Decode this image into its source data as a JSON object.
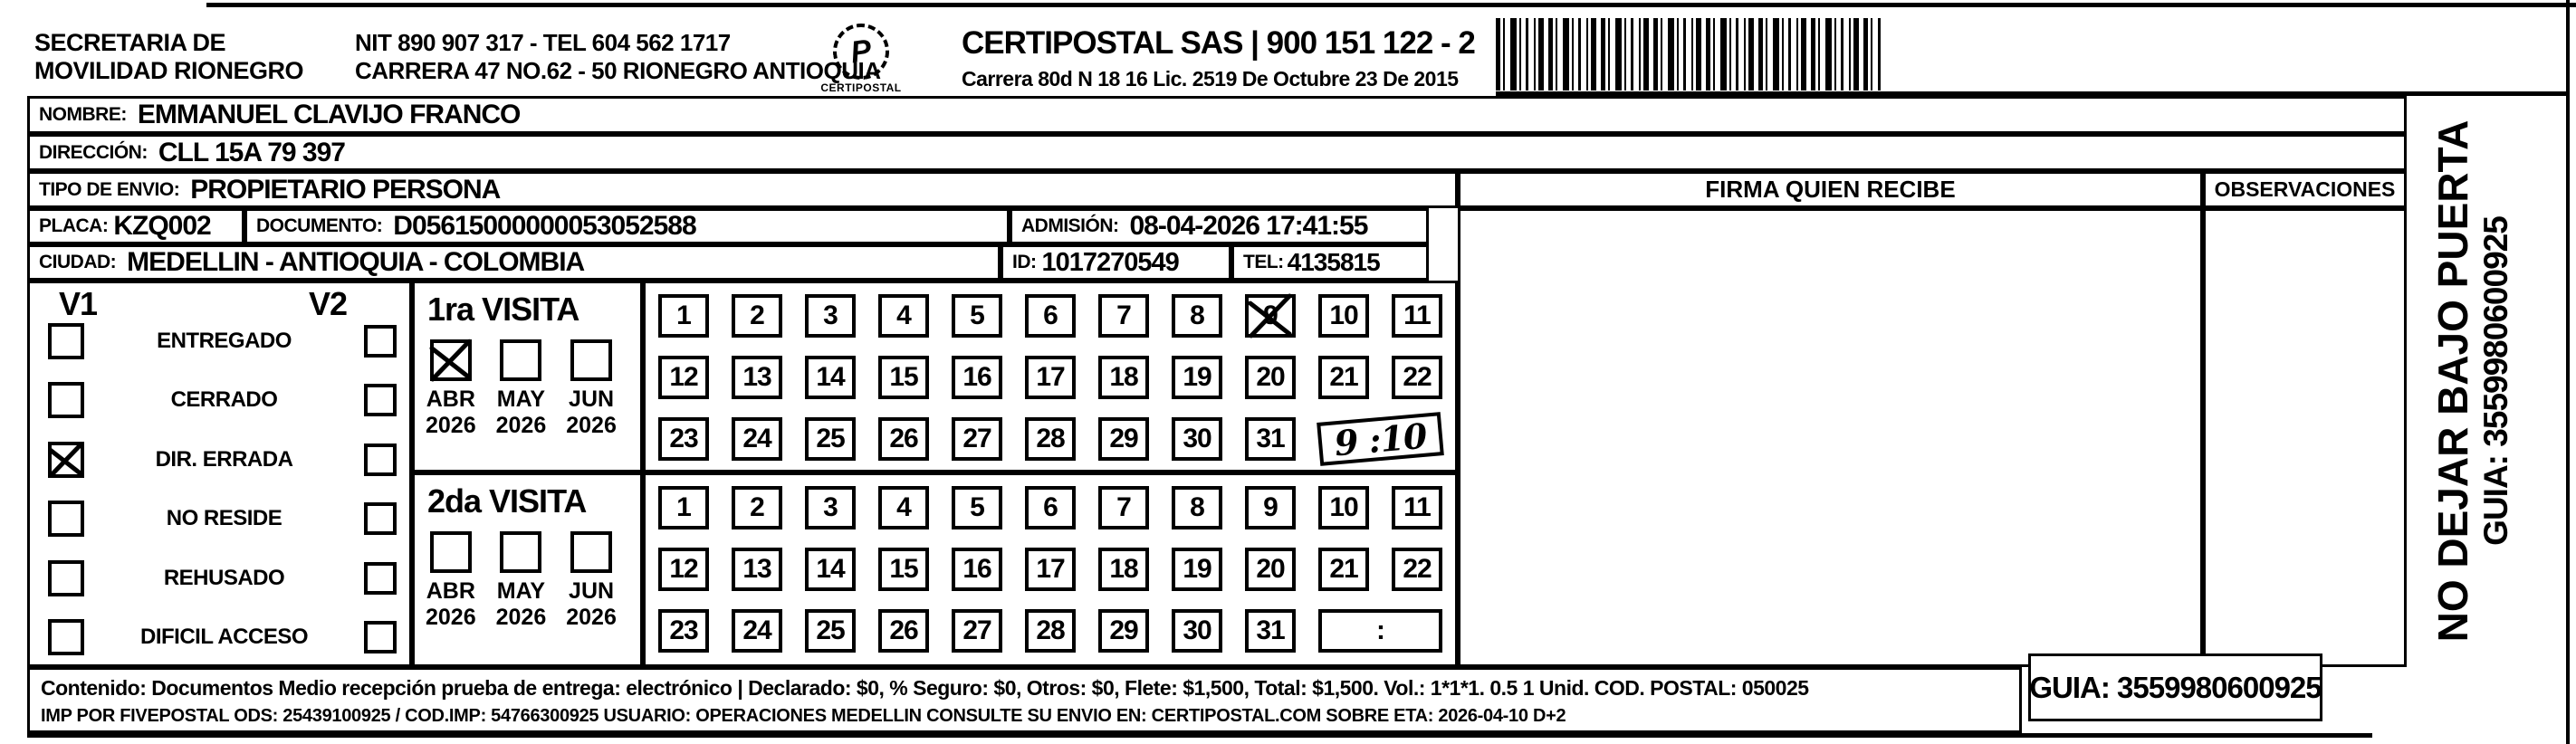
{
  "header": {
    "org_line1": "SECRETARIA DE",
    "org_line2": "MOVILIDAD RIONEGRO",
    "nit_line": "NIT 890 907 317 - TEL 604 562 1717",
    "address_line": "CARRERA 47 NO.62 - 50 RIONEGRO ANTIOQUIA",
    "logo_glyph": "P",
    "logo_text": "CERTIPOSTAL",
    "company_line": "CERTIPOSTAL SAS | 900 151 122 - 2",
    "company_address": "Carrera 80d N 18 16  Lic. 2519 De Octubre 23 De 2015"
  },
  "recipient": {
    "nombre_label": "NOMBRE:",
    "nombre": "EMMANUEL CLAVIJO FRANCO",
    "direccion_label": "DIRECCIÓN:",
    "direccion": "CLL 15A 79 397",
    "tipo_label": "TIPO DE ENVIO:",
    "tipo": "PROPIETARIO PERSONA",
    "placa_label": "PLACA:",
    "placa": "KZQ002",
    "documento_label": "DOCUMENTO:",
    "documento": "D05615000000053052588",
    "admision_label": "ADMISIÓN:",
    "admision": "08-04-2026 17:41:55",
    "ciudad_label": "CIUDAD:",
    "ciudad": "MEDELLIN - ANTIOQUIA - COLOMBIA",
    "id_label": "ID:",
    "id": "1017270549",
    "tel_label": "TEL:",
    "tel": "4135815"
  },
  "status_panel": {
    "v1_label": "V1",
    "v2_label": "V2",
    "rows": [
      {
        "label": "ENTREGADO",
        "v1_checked": false,
        "v2_checked": false
      },
      {
        "label": "CERRADO",
        "v1_checked": false,
        "v2_checked": false
      },
      {
        "label": "DIR. ERRADA",
        "v1_checked": true,
        "v2_checked": false
      },
      {
        "label": "NO RESIDE",
        "v1_checked": false,
        "v2_checked": false
      },
      {
        "label": "REHUSADO",
        "v1_checked": false,
        "v2_checked": false
      },
      {
        "label": "DIFICIL ACCESO",
        "v1_checked": false,
        "v2_checked": false
      }
    ]
  },
  "visits": [
    {
      "title": "1ra VISITA",
      "months": [
        {
          "label": "ABR",
          "year": "2026",
          "checked": true
        },
        {
          "label": "MAY",
          "year": "2026",
          "checked": false
        },
        {
          "label": "JUN",
          "year": "2026",
          "checked": false
        }
      ],
      "days_row1": [
        1,
        2,
        3,
        4,
        5,
        6,
        7,
        8,
        9,
        10,
        11
      ],
      "days_row2": [
        12,
        13,
        14,
        15,
        16,
        17,
        18,
        19,
        20,
        21,
        22
      ],
      "days_row3": [
        23,
        24,
        25,
        26,
        27,
        28,
        29,
        30,
        31
      ],
      "crossed_day": 9,
      "time_value": "9 :10",
      "time_handwritten": true
    },
    {
      "title": "2da VISITA",
      "months": [
        {
          "label": "ABR",
          "year": "2026",
          "checked": false
        },
        {
          "label": "MAY",
          "year": "2026",
          "checked": false
        },
        {
          "label": "JUN",
          "year": "2026",
          "checked": false
        }
      ],
      "days_row1": [
        1,
        2,
        3,
        4,
        5,
        6,
        7,
        8,
        9,
        10,
        11
      ],
      "days_row2": [
        12,
        13,
        14,
        15,
        16,
        17,
        18,
        19,
        20,
        21,
        22
      ],
      "days_row3": [
        23,
        24,
        25,
        26,
        27,
        28,
        29,
        30,
        31
      ],
      "crossed_day": null,
      "time_value": ":",
      "time_handwritten": false
    }
  ],
  "signature": {
    "firma_header": "FIRMA QUIEN RECIBE",
    "observaciones_header": "OBSERVACIONES"
  },
  "side_note": {
    "line1": "NO DEJAR BAJO PUERTA",
    "line2": "GUIA: 3559980600925"
  },
  "footer": {
    "line1": "Contenido: Documentos Medio recepción prueba de entrega: electrónico | Declarado: $0, % Seguro: $0, Otros: $0, Flete: $1,500, Total: $1,500. Vol.: 1*1*1. 0.5  1 Unid. COD. POSTAL: 050025",
    "line2": "IMP POR FIVEPOSTAL ODS: 25439100925 / COD.IMP: 54766300925 USUARIO: OPERACIONES MEDELLIN CONSULTE SU ENVIO EN: CERTIPOSTAL.COM SOBRE ETA: 2026-04-10 D+2",
    "guia_box": "GUIA: 3559980600925"
  },
  "colors": {
    "ink": "#000000",
    "paper": "#ffffff"
  }
}
